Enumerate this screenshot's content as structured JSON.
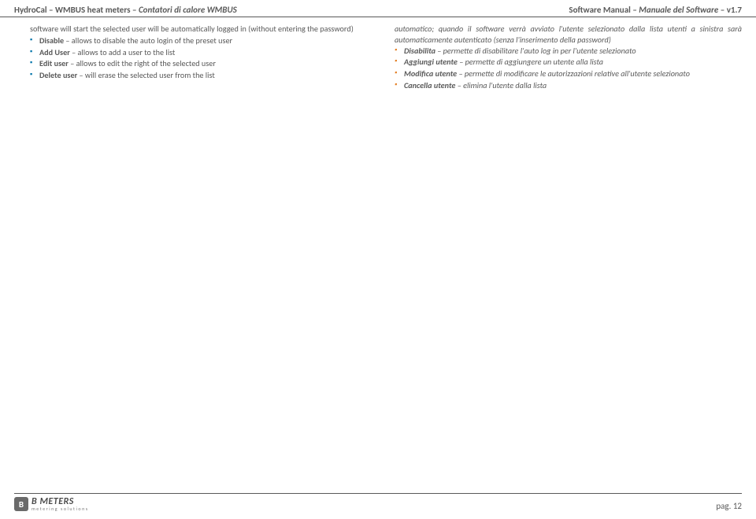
{
  "header": {
    "left_a": "HydroCal – WMBUS heat meters – ",
    "left_b_italic": "Contatori di calore WMBUS",
    "right_a": "Software Manual – ",
    "right_b_italic": "Manuale del Software",
    "right_c": " – v1.7"
  },
  "left_column": {
    "lead": "software will start the selected user will be automatically logged in (without entering the password)",
    "items": [
      {
        "bold": "Disable",
        "rest": " – allows to disable the auto login of the preset user"
      },
      {
        "bold": "Add User",
        "rest": " – allows to add a user to the list"
      },
      {
        "bold": "Edit user",
        "rest": " – allows to edit the right of the selected user"
      },
      {
        "bold": "Delete user",
        "rest": " – will erase the selected user from the list"
      }
    ]
  },
  "right_column": {
    "lead": "automatico; quando il software verrà avviato l'utente selezionato dalla lista utenti a sinistra sarà automaticamente autenticato (senza l'inserimento della password)",
    "items": [
      {
        "bold": "Disabilita",
        "rest": " – permette di disabilitare l'auto log in per l'utente selezionato"
      },
      {
        "bold": "Aggiungi utente",
        "rest": " – permette di aggiungere un utente alla lista"
      },
      {
        "bold": "Modifica utente",
        "rest": " – permette di modificare le autorizzazioni relative all'utente selezionato"
      },
      {
        "bold": "Cancella utente",
        "rest": " – elimina l'utente dalla lista"
      }
    ]
  },
  "footer": {
    "logo_letter": "B",
    "logo_main": "B METERS",
    "logo_sub": "metering solutions",
    "page": "pag. 12"
  },
  "colors": {
    "text": "#595959",
    "bullet_left": "#0174A9",
    "bullet_right": "#E37E23",
    "rule": "#595959"
  }
}
